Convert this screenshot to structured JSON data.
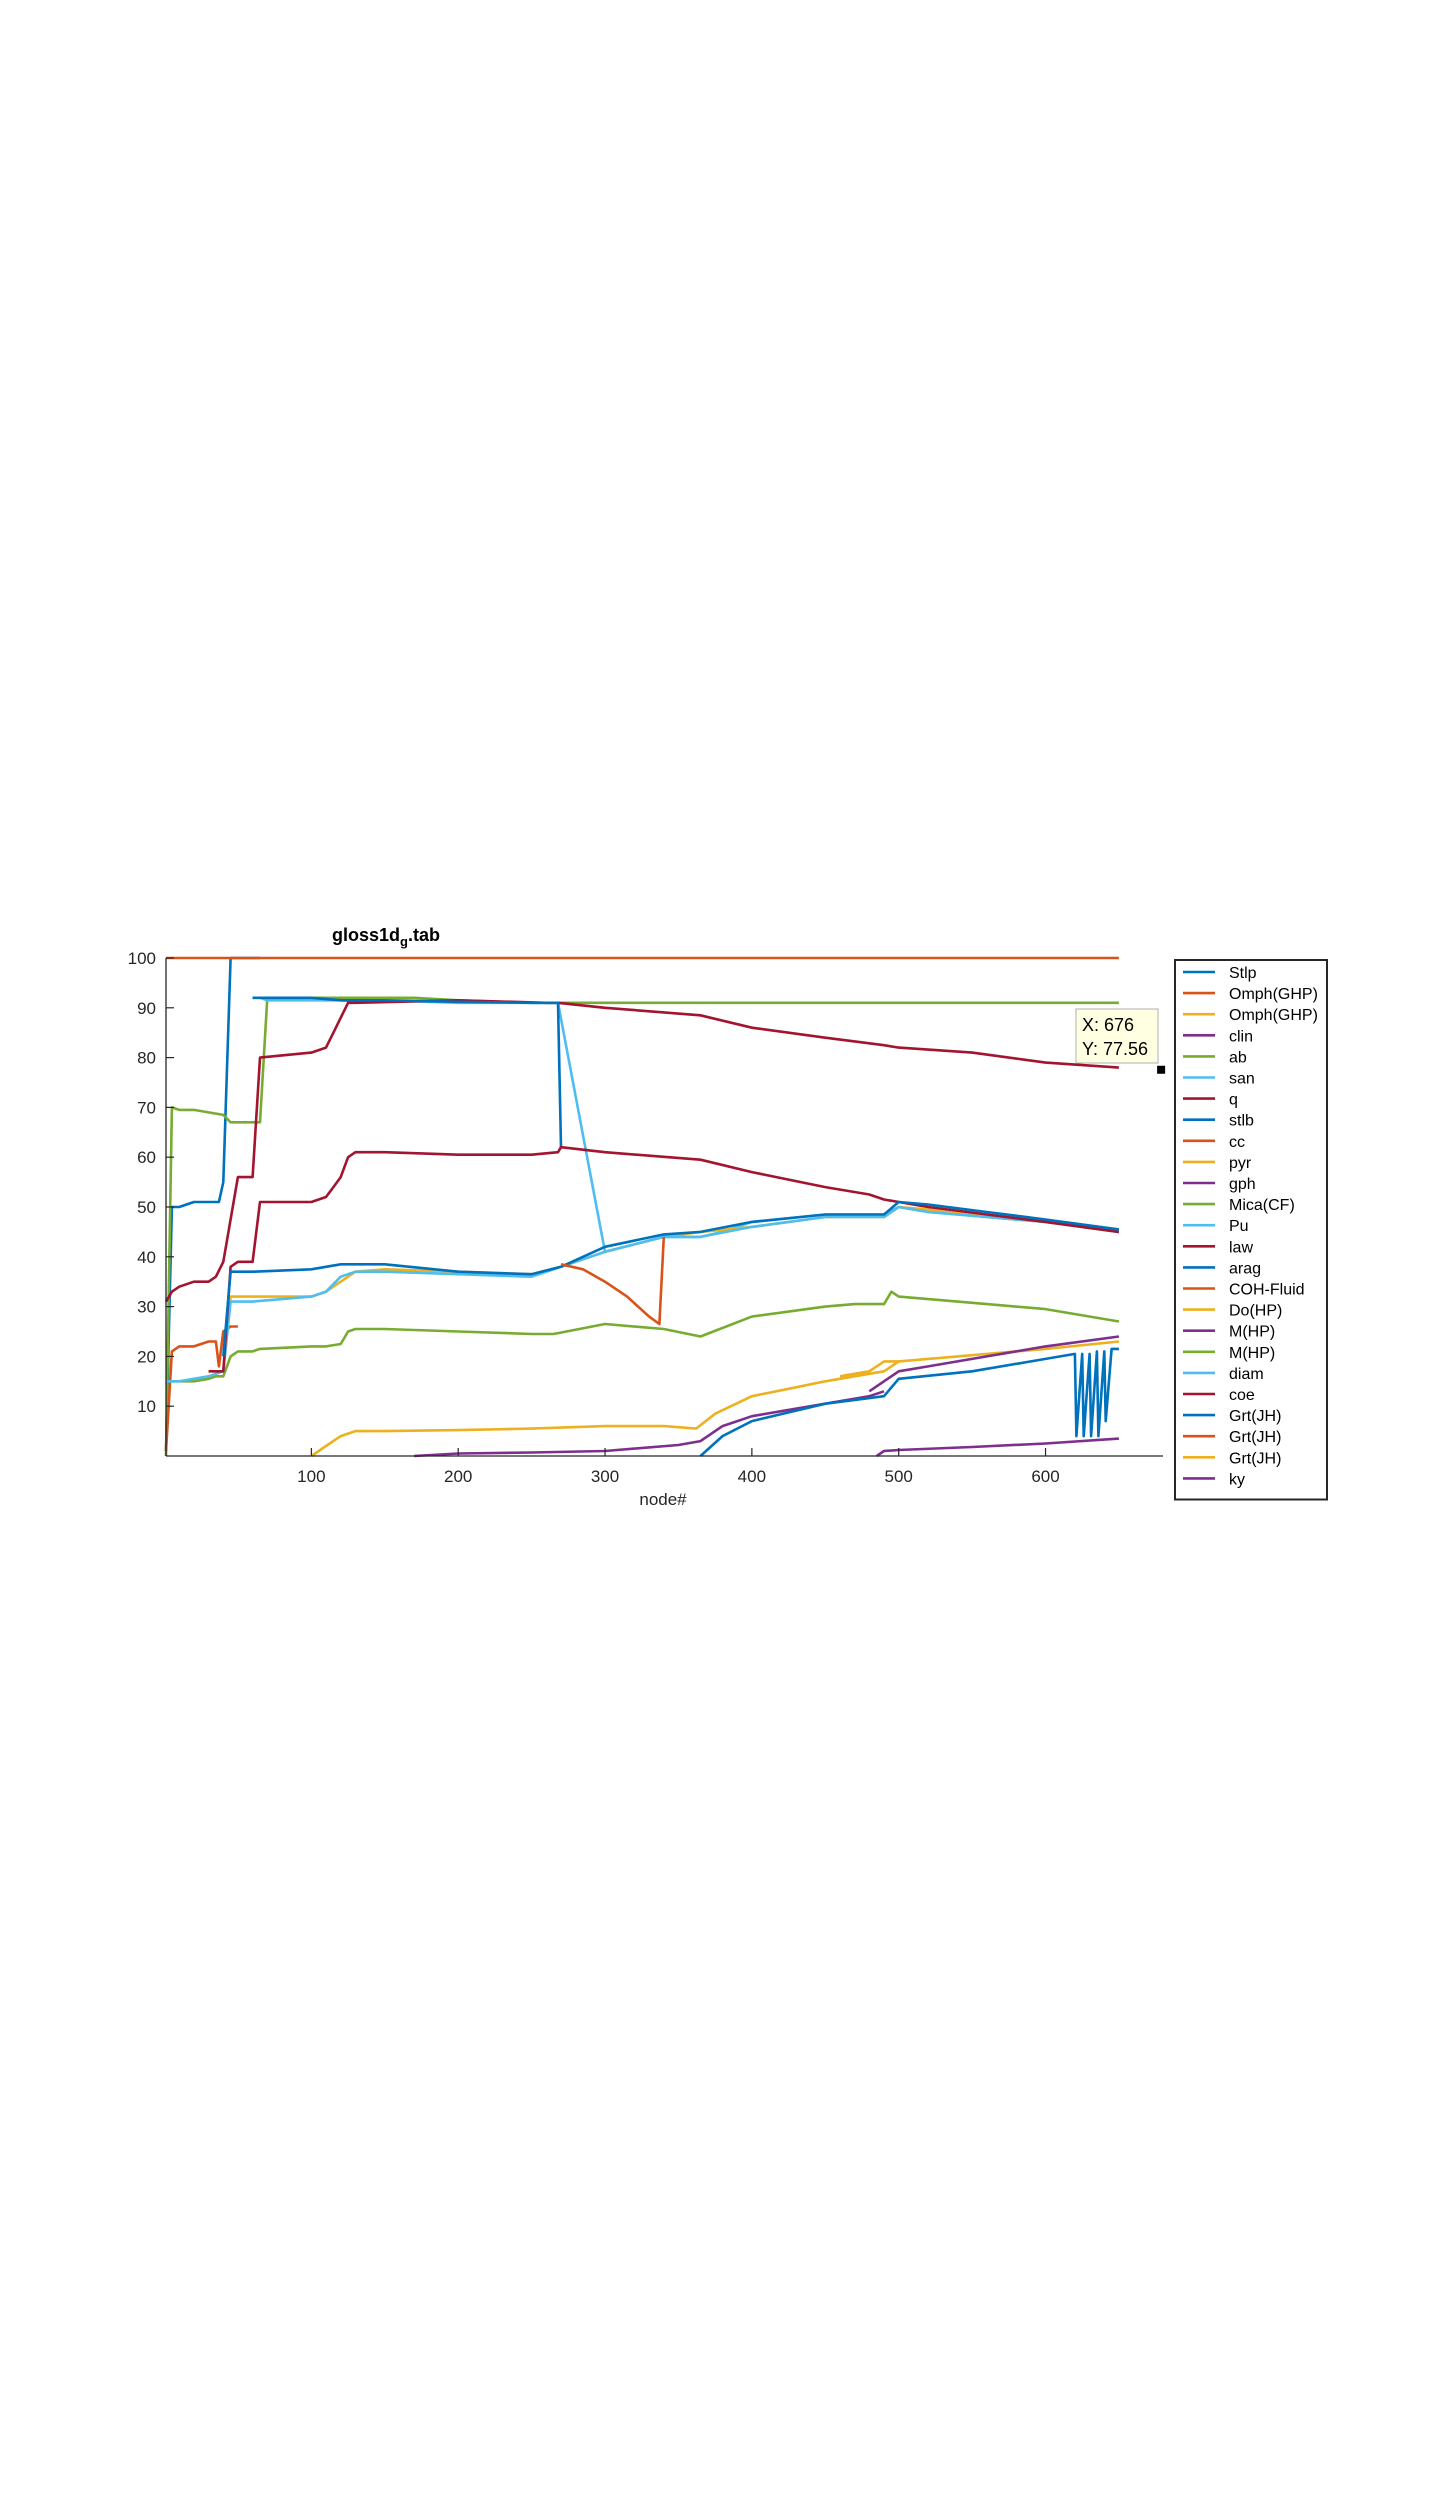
{
  "chart_data": {
    "type": "line",
    "title_main": "gloss1d",
    "title_sub": "g",
    "title_ext": ".tab",
    "xlabel": "node#",
    "ylabel": "",
    "xlim": [
      1,
      680
    ],
    "ylim": [
      0,
      100
    ],
    "x_ticks": [
      100,
      200,
      300,
      400,
      500,
      600
    ],
    "y_ticks": [
      10,
      20,
      30,
      40,
      50,
      60,
      70,
      80,
      90,
      100
    ],
    "grid": false,
    "legend_position": "outside-right",
    "datatip": {
      "x_label": "X: 676",
      "y_label": "Y: 77.56",
      "x": 676,
      "y": 77.56
    },
    "series": [
      {
        "name": "Stlp",
        "color": "#0072BD",
        "x": [
          1,
          5,
          10,
          20,
          30,
          37,
          40,
          45,
          50,
          60,
          65
        ],
        "y": [
          1,
          50,
          50,
          51,
          51,
          51,
          55,
          100,
          100,
          100,
          100
        ]
      },
      {
        "name": "Omph(GHP)",
        "color": "#D95319",
        "x": [
          1,
          650
        ],
        "y": [
          100,
          100
        ]
      },
      {
        "name": "Omph(GHP)",
        "color": "#EDB120",
        "x": [
          100,
          110,
          120,
          130,
          150,
          200,
          250,
          300,
          340,
          362,
          375,
          400,
          450,
          470,
          490,
          500,
          520,
          560,
          600,
          650
        ],
        "y": [
          0,
          2,
          4,
          5,
          5,
          5.2,
          5.5,
          6,
          6,
          5.5,
          8.5,
          12,
          15,
          16,
          17,
          19,
          19.5,
          20.5,
          21.5,
          23
        ]
      },
      {
        "name": "clin",
        "color": "#7E2F8E",
        "x": [
          170,
          200,
          250,
          300,
          350,
          365,
          380,
          400,
          450,
          480,
          490
        ],
        "y": [
          0,
          0.5,
          0.7,
          1,
          2.2,
          3,
          6,
          8,
          10.5,
          12,
          13
        ]
      },
      {
        "name": "ab",
        "color": "#77AC30",
        "x": [
          1,
          5,
          10,
          20,
          30,
          40,
          45,
          50,
          60,
          65,
          70,
          100,
          110,
          120,
          130,
          150,
          170,
          200,
          250,
          300,
          340,
          365,
          380,
          400,
          450,
          500,
          550,
          600,
          650
        ],
        "y": [
          0,
          70,
          69.5,
          69.5,
          69,
          68.5,
          67,
          67,
          67,
          67,
          92,
          92,
          92,
          92,
          92,
          92,
          92,
          91.5,
          91,
          91,
          91,
          91,
          91,
          91,
          91,
          91,
          91,
          91,
          91
        ]
      },
      {
        "name": "san",
        "color": "#4DBEEE",
        "x": [
          60,
          65,
          70,
          100,
          110,
          120,
          130,
          150,
          170,
          200,
          250,
          268,
          300,
          340,
          365,
          380,
          400,
          450,
          490,
          500,
          520,
          560,
          600,
          650
        ],
        "y": [
          92,
          92,
          91.5,
          91.5,
          91.5,
          91.5,
          91.3,
          91.3,
          91.3,
          91,
          91,
          91,
          41,
          44,
          44,
          45,
          47,
          48.5,
          48.5,
          50,
          49,
          48,
          47,
          45
        ]
      },
      {
        "name": "q",
        "color": "#A2142F",
        "x": [
          1,
          5,
          10,
          20,
          30,
          35,
          40,
          50,
          55,
          60,
          65,
          100,
          110,
          115,
          120,
          125,
          130,
          200,
          260,
          268,
          300,
          365,
          400,
          450,
          490,
          500,
          550,
          600,
          650
        ],
        "y": [
          31,
          33,
          34,
          35,
          35,
          36,
          39,
          56,
          56,
          56,
          80,
          81,
          82,
          85,
          88,
          91,
          91,
          91.5,
          91,
          91,
          90,
          88.5,
          86,
          84,
          82.5,
          82,
          81,
          79,
          78
        ]
      },
      {
        "name": "stlb",
        "color": "#0072BD",
        "x": [
          60,
          65,
          70,
          100,
          120,
          130,
          150,
          200,
          250,
          268,
          270
        ],
        "y": [
          92,
          92,
          92,
          92,
          91.5,
          91.5,
          91.5,
          91.2,
          91,
          91,
          62
        ]
      },
      {
        "name": "cc",
        "color": "#D95319",
        "x": [
          1,
          5,
          10,
          20,
          30,
          35,
          37,
          40,
          45,
          50
        ],
        "y": [
          1,
          21,
          22,
          22,
          23,
          23,
          18,
          25,
          26,
          26
        ]
      },
      {
        "name": "pyr",
        "color": "#EDB120",
        "x": [
          30,
          40,
          45,
          50,
          60,
          100,
          110,
          120,
          130,
          150,
          200,
          250,
          270,
          300,
          340,
          365,
          400,
          450,
          490,
          500,
          520,
          560,
          600,
          650
        ],
        "y": [
          17,
          17,
          32,
          32,
          32,
          32,
          33,
          35,
          37,
          37.5,
          37,
          36.5,
          38,
          41,
          44,
          45,
          46,
          48,
          48,
          50,
          49.5,
          48,
          47,
          45
        ]
      },
      {
        "name": "gph",
        "color": "#7E2F8E",
        "x": [
          485,
          490,
          500,
          550,
          600,
          650
        ],
        "y": [
          0,
          1,
          1.2,
          1.8,
          2.5,
          3.5
        ]
      },
      {
        "name": "Mica(CF)",
        "color": "#77AC30",
        "x": [
          1,
          5,
          10,
          20,
          30,
          35,
          40,
          45,
          50,
          60,
          65,
          100,
          110,
          120,
          125,
          130,
          150,
          200,
          250,
          265,
          300,
          340,
          365,
          400,
          450,
          470,
          490,
          495,
          500,
          520,
          560,
          600,
          650
        ],
        "y": [
          15,
          15,
          15,
          15,
          15.5,
          16,
          16,
          20,
          21,
          21,
          21.5,
          22,
          22,
          22.5,
          25,
          25.5,
          25.5,
          25,
          24.5,
          24.5,
          26.5,
          25.5,
          24,
          28,
          30,
          30.5,
          30.5,
          33,
          32,
          31.5,
          30.5,
          29.5,
          27
        ]
      },
      {
        "name": "Pu",
        "color": "#4DBEEE",
        "x": [
          1,
          10,
          20,
          30,
          40,
          45,
          50,
          60,
          100,
          110,
          120,
          130,
          150,
          200,
          250,
          270,
          300,
          340,
          365,
          400,
          450,
          490,
          500,
          520,
          560,
          600,
          650
        ],
        "y": [
          15,
          15,
          15.5,
          16,
          17,
          31,
          31,
          31,
          32,
          33,
          36,
          37,
          37,
          36.5,
          36,
          38,
          41,
          44,
          44,
          46,
          48,
          48,
          50,
          49,
          48,
          47,
          45
        ]
      },
      {
        "name": "law",
        "color": "#A2142F",
        "x": [
          30,
          40,
          45,
          50,
          60,
          65,
          100,
          110,
          115,
          120,
          125,
          130,
          150,
          200,
          250,
          268,
          270,
          300,
          365,
          400,
          450,
          480,
          490,
          500,
          520,
          560,
          600,
          650
        ],
        "y": [
          17,
          17,
          38,
          39,
          39,
          51,
          51,
          52,
          54,
          56,
          60,
          61,
          61,
          60.5,
          60.5,
          61,
          62,
          61,
          59.5,
          57,
          54,
          52.5,
          51.5,
          51,
          50,
          48.5,
          47,
          45
        ]
      },
      {
        "name": "arag",
        "color": "#0072BD",
        "x": [
          40,
          45,
          50,
          60,
          100,
          110,
          120,
          130,
          150,
          200,
          250,
          270,
          300,
          340,
          365,
          400,
          450,
          490,
          500,
          520,
          560,
          600,
          650
        ],
        "y": [
          20,
          37,
          37,
          37,
          37.5,
          38,
          38.5,
          38.5,
          38.5,
          37,
          36.5,
          38,
          42,
          44.5,
          45,
          47,
          48.5,
          48.5,
          51,
          50.5,
          49,
          47.5,
          45.5
        ]
      },
      {
        "name": "COH-Fluid",
        "color": "#D95319",
        "x": [
          270,
          285,
          300,
          315,
          330,
          337,
          340
        ],
        "y": [
          38.5,
          37.5,
          35,
          32,
          28,
          26.5,
          44
        ]
      },
      {
        "name": "Do(HP)",
        "color": "#EDB120",
        "x": [
          460,
          470,
          480,
          490,
          500
        ],
        "y": [
          16,
          16.5,
          17,
          19,
          19
        ]
      },
      {
        "name": "M(HP)",
        "color": "#7E2F8E",
        "x": [
          480,
          490,
          500,
          520,
          560,
          600,
          650
        ],
        "y": [
          13,
          15,
          17,
          18,
          20,
          22,
          24
        ]
      },
      {
        "name": "M(HP)",
        "color": "#77AC30",
        "x": [],
        "y": []
      },
      {
        "name": "diam",
        "color": "#4DBEEE",
        "x": [],
        "y": []
      },
      {
        "name": "coe",
        "color": "#A2142F",
        "x": [],
        "y": []
      },
      {
        "name": "Grt(JH)",
        "color": "#0072BD",
        "x": [
          365,
          380,
          400,
          450,
          490,
          500,
          550,
          600,
          620,
          621,
          625,
          626,
          630,
          631,
          635,
          636,
          640,
          641,
          645,
          650
        ],
        "y": [
          0,
          4,
          7,
          10.5,
          12,
          15.5,
          17,
          19.5,
          20.5,
          4,
          20.5,
          4,
          20.5,
          4,
          21,
          4,
          21,
          7,
          21.5,
          21.5
        ]
      },
      {
        "name": "Grt(JH)",
        "color": "#D95319",
        "x": [],
        "y": []
      },
      {
        "name": "Grt(JH)",
        "color": "#EDB120",
        "x": [],
        "y": []
      },
      {
        "name": "ky",
        "color": "#7E2F8E",
        "x": [],
        "y": []
      }
    ]
  }
}
